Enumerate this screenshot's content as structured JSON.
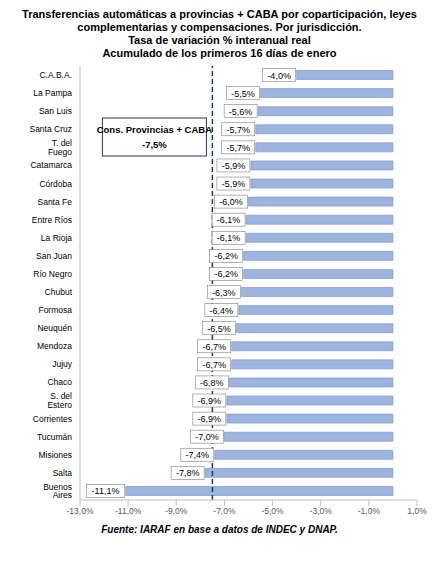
{
  "chart_data": {
    "type": "bar",
    "orientation": "horizontal",
    "title": "Transferencias automáticas a provincias + CABA por coparticipación, leyes complementarias y compensaciones. Por jurisdicción.",
    "subtitle": [
      "Tasa de variación % interanual real",
      "Acumulado de los primeros 16 días de enero"
    ],
    "source": "Fuente: IARAF en base a datos de INDEC y DNAP.",
    "categories": [
      "C.A.B.A.",
      "La Pampa",
      "San Luis",
      "Santa Cruz",
      "T. del Fuego",
      "Catamarca",
      "Córdoba",
      "Santa Fe",
      "Entre Ríos",
      "La Rioja",
      "San Juan",
      "Río Negro",
      "Chubut",
      "Formosa",
      "Neuquén",
      "Mendoza",
      "Jujuy",
      "Chaco",
      "S. del Estero",
      "Corrientes",
      "Tucumán",
      "Misiones",
      "Salta",
      "Buenos Aires"
    ],
    "values": [
      -4.0,
      -5.5,
      -5.6,
      -5.7,
      -5.7,
      -5.9,
      -5.9,
      -6.0,
      -6.1,
      -6.1,
      -6.2,
      -6.2,
      -6.3,
      -6.4,
      -6.5,
      -6.7,
      -6.7,
      -6.8,
      -6.9,
      -6.9,
      -7.0,
      -7.4,
      -7.8,
      -11.1
    ],
    "value_labels": [
      "-4,0%",
      "-5,5%",
      "-5,6%",
      "-5,7%",
      "-5,7%",
      "-5,9%",
      "-5,9%",
      "-6,0%",
      "-6,1%",
      "-6,1%",
      "-6,2%",
      "-6,2%",
      "-6,3%",
      "-6,4%",
      "-6,5%",
      "-6,7%",
      "-6,7%",
      "-6,8%",
      "-6,9%",
      "-6,9%",
      "-7,0%",
      "-7,4%",
      "-7,8%",
      "-11,1%"
    ],
    "data_labels": true,
    "color": "#9db5de",
    "xlim": [
      -13,
      1
    ],
    "xticks": [
      {
        "value": -13,
        "label": "-13,0%"
      },
      {
        "value": -11,
        "label": "-11,0%"
      },
      {
        "value": -9,
        "label": "-9,0%"
      },
      {
        "value": -7,
        "label": "-7,0%"
      },
      {
        "value": -5,
        "label": "-5,0%"
      },
      {
        "value": -3,
        "label": "-3,0%"
      },
      {
        "value": -1,
        "label": "-1,0%"
      },
      {
        "value": 1,
        "label": "1,0%"
      }
    ],
    "grid": false,
    "reference_line": {
      "value": -7.5,
      "text": "Cons. Provincias + CABA",
      "label": "-7,5%",
      "line_style": "dashed",
      "color": "#1f3864"
    }
  }
}
